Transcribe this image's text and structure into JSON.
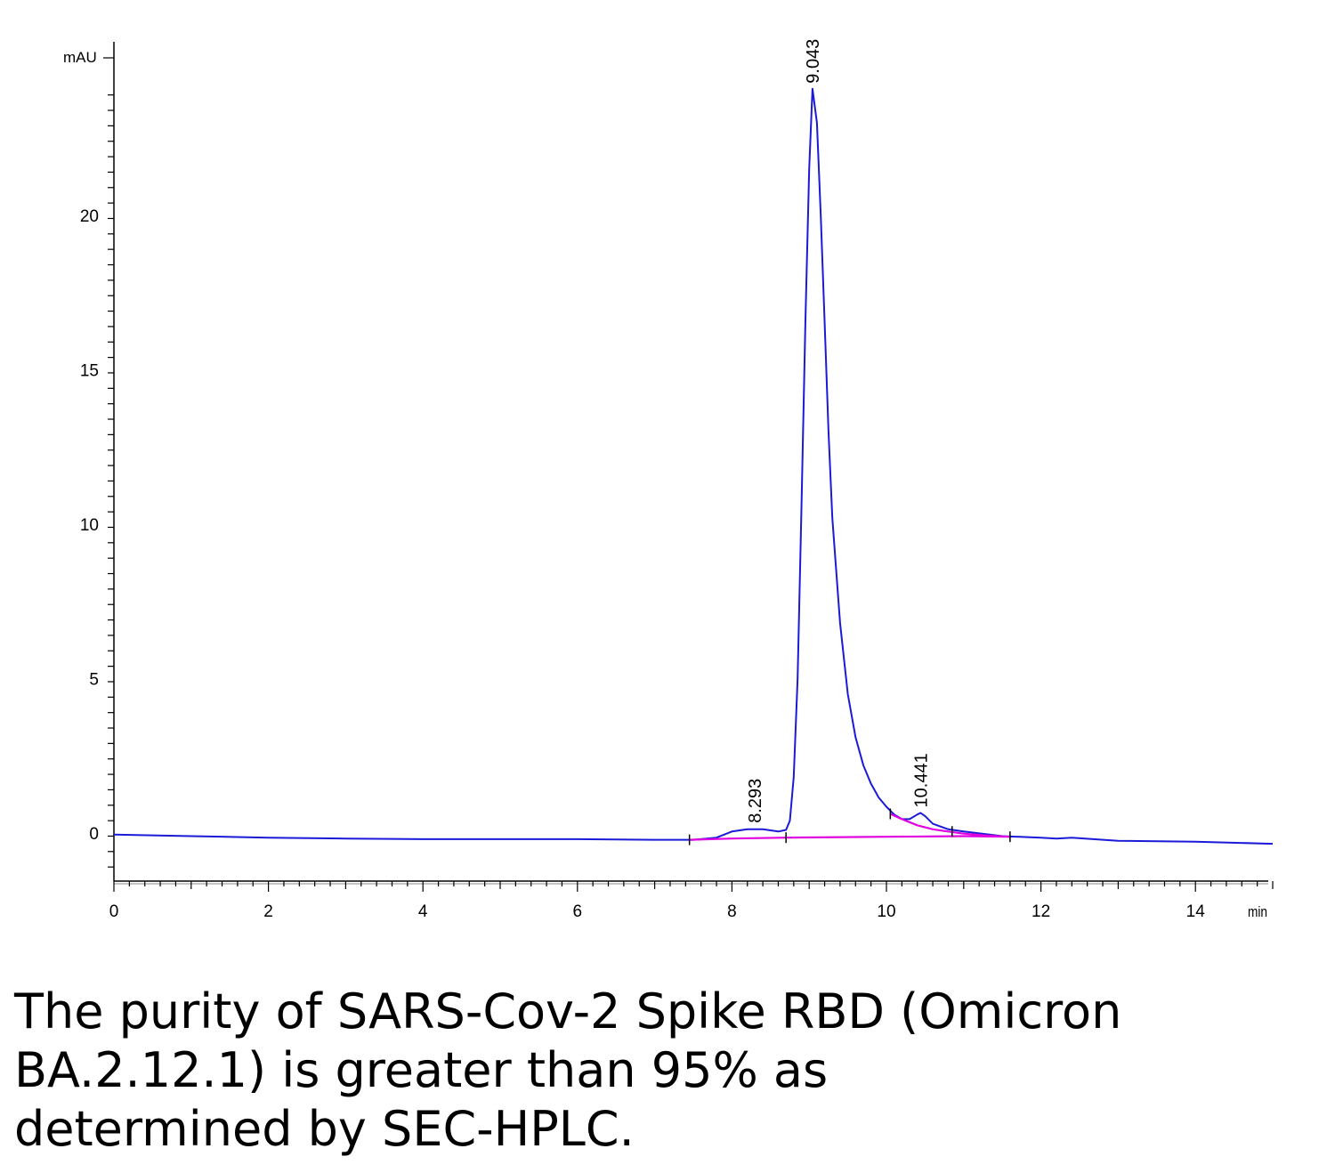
{
  "chart_data": {
    "type": "line",
    "x_unit": "min",
    "y_unit": "mAU",
    "xlim": [
      0,
      15
    ],
    "ylim": [
      -1.6,
      25
    ],
    "x_ticks": [
      "0",
      "2",
      "4",
      "6",
      "8",
      "10",
      "12",
      "14"
    ],
    "y_ticks": [
      "0",
      "5",
      "10",
      "15",
      "20"
    ],
    "grid": false,
    "peak_labels": [
      {
        "x": 8.293,
        "y": 0.15,
        "text": "8.293"
      },
      {
        "x": 9.043,
        "y": 24.1,
        "text": "9.043"
      },
      {
        "x": 10.441,
        "y": 0.65,
        "text": "10.441"
      }
    ],
    "series": [
      {
        "color": "#1a1ad8",
        "points": [
          [
            0,
            -0.05
          ],
          [
            1,
            -0.1
          ],
          [
            2,
            -0.15
          ],
          [
            3,
            -0.18
          ],
          [
            4,
            -0.2
          ],
          [
            5,
            -0.2
          ],
          [
            6,
            -0.2
          ],
          [
            7,
            -0.22
          ],
          [
            7.5,
            -0.22
          ],
          [
            7.8,
            -0.15
          ],
          [
            8.0,
            0.05
          ],
          [
            8.2,
            0.12
          ],
          [
            8.4,
            0.12
          ],
          [
            8.6,
            0.05
          ],
          [
            8.7,
            0.1
          ],
          [
            8.75,
            0.4
          ],
          [
            8.8,
            1.8
          ],
          [
            8.85,
            5.0
          ],
          [
            8.9,
            10.5
          ],
          [
            8.95,
            16.5
          ],
          [
            9.0,
            21.5
          ],
          [
            9.043,
            24.1
          ],
          [
            9.1,
            23.0
          ],
          [
            9.15,
            20.0
          ],
          [
            9.2,
            16.5
          ],
          [
            9.25,
            13.0
          ],
          [
            9.3,
            10.2
          ],
          [
            9.4,
            6.8
          ],
          [
            9.5,
            4.5
          ],
          [
            9.6,
            3.1
          ],
          [
            9.7,
            2.2
          ],
          [
            9.8,
            1.6
          ],
          [
            9.9,
            1.15
          ],
          [
            10.0,
            0.85
          ],
          [
            10.1,
            0.6
          ],
          [
            10.2,
            0.45
          ],
          [
            10.3,
            0.45
          ],
          [
            10.4,
            0.6
          ],
          [
            10.441,
            0.65
          ],
          [
            10.5,
            0.55
          ],
          [
            10.6,
            0.3
          ],
          [
            10.8,
            0.12
          ],
          [
            11.0,
            0.05
          ],
          [
            11.5,
            -0.1
          ],
          [
            12.0,
            -0.15
          ],
          [
            12.2,
            -0.18
          ],
          [
            12.4,
            -0.15
          ],
          [
            13.0,
            -0.25
          ],
          [
            14.0,
            -0.28
          ],
          [
            15.0,
            -0.35
          ]
        ]
      },
      {
        "color": "#e000e0",
        "points": [
          [
            7.45,
            -0.22
          ],
          [
            8.0,
            -0.18
          ],
          [
            8.7,
            -0.15
          ],
          [
            10.0,
            -0.12
          ],
          [
            11.0,
            -0.1
          ],
          [
            11.6,
            -0.12
          ]
        ]
      },
      {
        "color": "#e000e0",
        "points": [
          [
            10.05,
            0.62
          ],
          [
            10.2,
            0.45
          ],
          [
            10.4,
            0.25
          ],
          [
            10.6,
            0.12
          ],
          [
            10.8,
            0.05
          ],
          [
            11.0,
            -0.02
          ],
          [
            11.3,
            -0.08
          ],
          [
            11.6,
            -0.12
          ]
        ]
      }
    ]
  },
  "caption": "The purity of SARS-Cov-2 Spike RBD (Omicron\nBA.2.12.1) is greater than 95% as\ndetermined by SEC-HPLC."
}
